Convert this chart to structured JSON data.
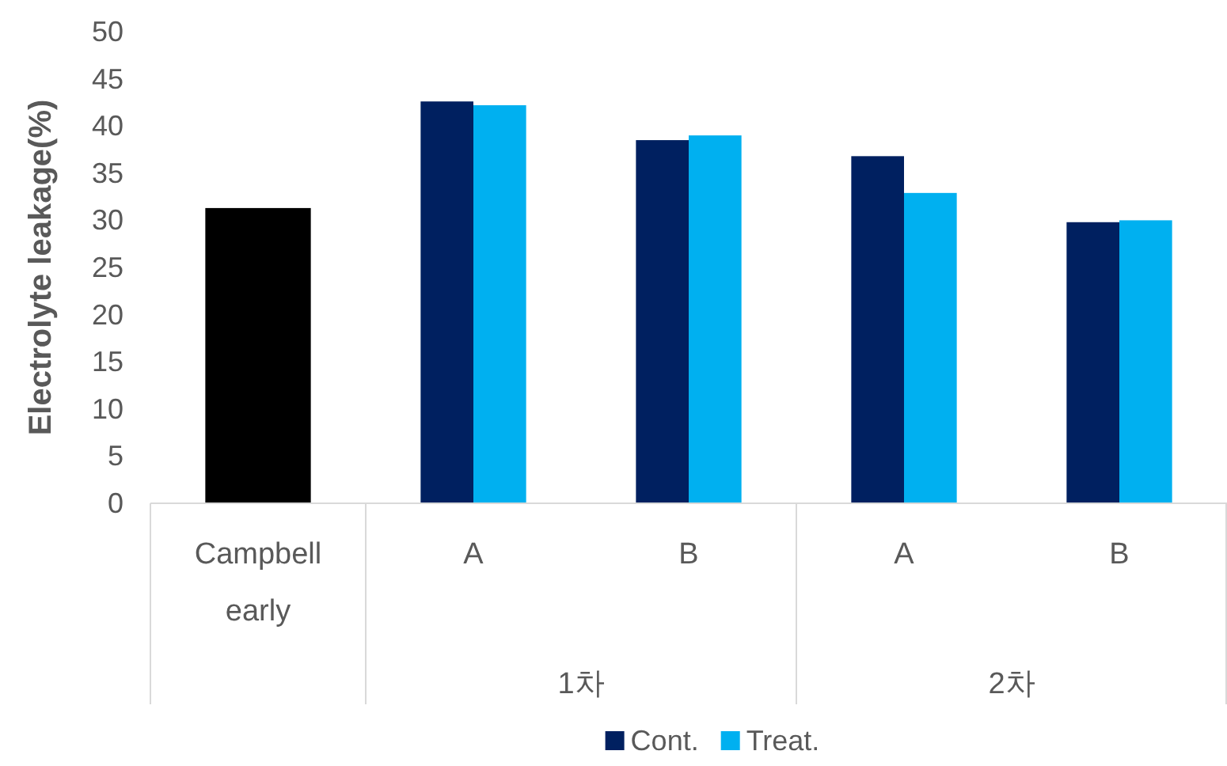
{
  "chart_data": {
    "type": "bar",
    "ylabel": "Electrolyte leakage(%)",
    "categories": [
      "Campbell early",
      "A",
      "B",
      "A",
      "B"
    ],
    "annotations": [
      "1차",
      "2차"
    ],
    "series": [
      {
        "color": "#000000",
        "values": [
          31.3,
          null,
          null,
          null,
          null
        ]
      },
      {
        "name": "Cont.",
        "color": "#002060",
        "values": [
          null,
          42.6,
          38.5,
          36.8,
          29.8
        ]
      },
      {
        "name": "Treat.",
        "color": "#00b0f0",
        "values": [
          null,
          42.2,
          39.0,
          32.9,
          30.0
        ]
      }
    ],
    "ylim": [
      0,
      50
    ],
    "yticks": [
      0,
      5,
      10,
      15,
      20,
      25,
      30,
      35,
      40,
      45,
      50
    ],
    "grid": false,
    "legend": "bottom"
  }
}
